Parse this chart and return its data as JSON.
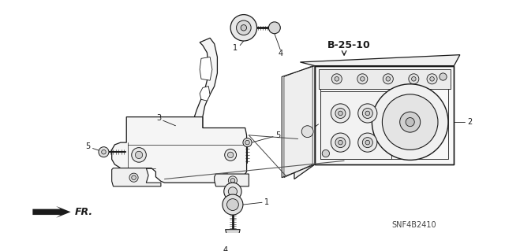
{
  "bg_color": "#ffffff",
  "line_color": "#1a1a1a",
  "label_b2510": "B-25-10",
  "label_snf": "SNF4B2410",
  "label_fr": "FR.",
  "figsize": [
    6.4,
    3.19
  ],
  "dpi": 100
}
